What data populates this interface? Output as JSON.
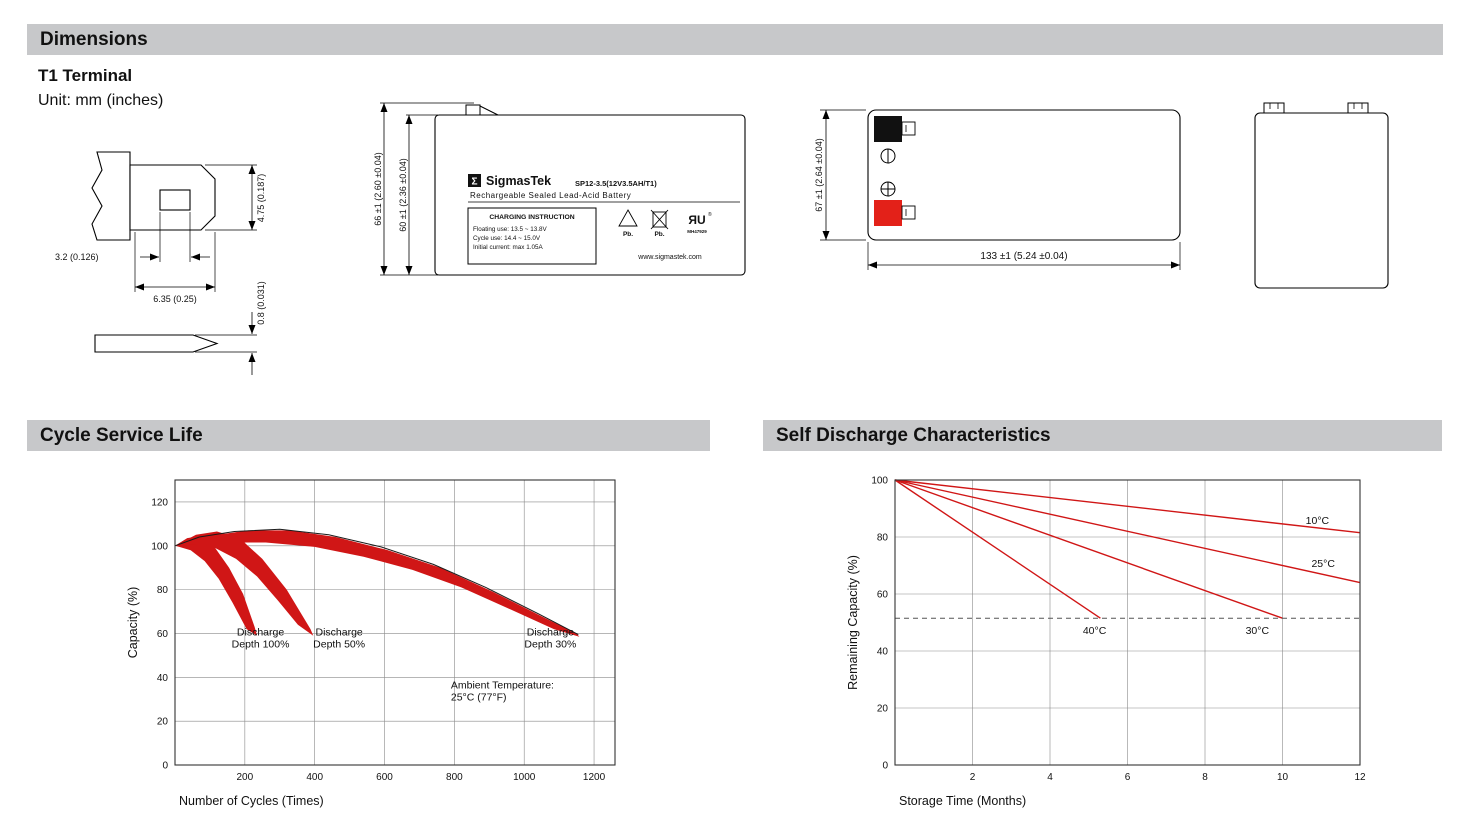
{
  "colors": {
    "section_header_bg": "#c7c8ca",
    "chart_red": "#d01616",
    "terminal_red": "#e32119",
    "terminal_black": "#111111"
  },
  "sections": {
    "dimensions": {
      "title": "Dimensions",
      "subtitle": "T1 Terminal",
      "unit_note": "Unit: mm (inches)"
    },
    "cycle_life": {
      "title": "Cycle Service Life"
    },
    "self_discharge": {
      "title": "Self Discharge Characteristics"
    }
  },
  "terminal_drawing": {
    "dim_tab_width": "4.75 (0.187)",
    "dim_hole_width": "3.2 (0.126)",
    "dim_tab_length": "6.35 (0.25)",
    "dim_tab_thickness": "0.8 (0.031)"
  },
  "front_view": {
    "logo_glyph": "Σ",
    "brand": "SigmasTek",
    "model": "SP12-3.5(12V3.5AH/T1)",
    "battery_type": "Rechargeable Sealed Lead-Acid Battery",
    "charging_title": "CHARGING INSTRUCTION",
    "charging_line1": "Floating use: 13.5 ~ 13.8V",
    "charging_line2": "Cycle use: 14.4 ~ 15.0V",
    "charging_line3": "Initial current: max 1.05A",
    "pb_recycle_label": "Pb.",
    "pb_bin_label": "Pb.",
    "ul_mark": "ЯU",
    "ul_reg": "®",
    "ul_code": "MH47929",
    "website": "www.sigmastek.com",
    "dim_height_overall": "66 ±1 (2.60 ±0.04)",
    "dim_height_body": "60 ±1 (2.36 ±0.04)"
  },
  "top_view": {
    "dim_depth": "67 ±1 (2.64 ±0.04)",
    "dim_width": "133 ±1 (5.24 ±0.04)"
  },
  "chart_data": [
    {
      "id": "cycle-chart",
      "type": "area",
      "title": "Cycle Service Life",
      "xlabel": "Number of Cycles (Times)",
      "ylabel": "Capacity (%)",
      "xlim": [
        0,
        1260
      ],
      "ylim": [
        0,
        130
      ],
      "xticks": [
        200,
        400,
        600,
        800,
        1000,
        1200
      ],
      "yticks": [
        0,
        20,
        40,
        60,
        80,
        100,
        120
      ],
      "grid": true,
      "legend": "none",
      "bands": [
        {
          "name": "discharge-depth-100",
          "color": "#d01616",
          "points": [
            [
              0,
              100
            ],
            [
              35,
              103.5
            ],
            [
              75,
              104.5
            ],
            [
              115,
              99
            ],
            [
              155,
              90
            ],
            [
              195,
              78
            ],
            [
              228,
              63
            ],
            [
              235,
              59
            ],
            [
              205,
              62
            ],
            [
              165,
              74
            ],
            [
              125,
              85
            ],
            [
              85,
              93
            ],
            [
              45,
              98
            ],
            [
              12,
              99.5
            ],
            [
              0,
              100
            ]
          ]
        },
        {
          "name": "discharge-depth-50",
          "color": "#d01616",
          "points": [
            [
              0,
              100
            ],
            [
              60,
              105
            ],
            [
              120,
              106.5
            ],
            [
              185,
              103.5
            ],
            [
              250,
              94
            ],
            [
              320,
              80
            ],
            [
              388,
              62
            ],
            [
              396,
              59
            ],
            [
              352,
              64
            ],
            [
              295,
              75
            ],
            [
              235,
              86
            ],
            [
              175,
              94
            ],
            [
              115,
              99
            ],
            [
              55,
              100.5
            ],
            [
              0,
              100
            ]
          ]
        },
        {
          "name": "discharge-depth-30",
          "color": "#d01616",
          "points": [
            [
              0,
              100
            ],
            [
              100,
              104.5
            ],
            [
              210,
              107
            ],
            [
              330,
              107
            ],
            [
              460,
              104
            ],
            [
              610,
              98
            ],
            [
              760,
              90
            ],
            [
              910,
              79
            ],
            [
              1060,
              67
            ],
            [
              1150,
              60
            ],
            [
              1158,
              58.5
            ],
            [
              1085,
              62
            ],
            [
              960,
              71
            ],
            [
              820,
              81
            ],
            [
              680,
              89
            ],
            [
              540,
              95
            ],
            [
              400,
              99.5
            ],
            [
              260,
              101.5
            ],
            [
              130,
              101.5
            ],
            [
              40,
              100.5
            ],
            [
              0,
              100
            ]
          ]
        }
      ],
      "lines": [
        {
          "name": "envelope-curve",
          "color": "#1a1a1a",
          "width": 1,
          "points": [
            [
              0,
              100
            ],
            [
              70,
              104
            ],
            [
              170,
              106.5
            ],
            [
              300,
              107.5
            ],
            [
              440,
              105
            ],
            [
              590,
              99.5
            ],
            [
              740,
              91.5
            ],
            [
              890,
              81
            ],
            [
              1040,
              69
            ],
            [
              1155,
              59.5
            ]
          ]
        }
      ],
      "labels": [
        {
          "x": 245,
          "y": 59,
          "anchor": "middle",
          "lines": [
            "Discharge",
            "Depth 100%"
          ]
        },
        {
          "x": 470,
          "y": 59,
          "anchor": "middle",
          "lines": [
            "Discharge",
            "Depth 50%"
          ]
        },
        {
          "x": 1075,
          "y": 59,
          "anchor": "middle",
          "lines": [
            "Discharge",
            "Depth 30%"
          ]
        },
        {
          "x": 790,
          "y": 35,
          "anchor": "start",
          "lines": [
            "Ambient Temperature:",
            "25°C (77°F)"
          ]
        }
      ]
    },
    {
      "id": "self-chart",
      "type": "line",
      "title": "Self Discharge Characteristics",
      "xlabel": "Storage Time (Months)",
      "ylabel": "Remaining Capacity (%)",
      "xlim": [
        0,
        12
      ],
      "ylim": [
        0,
        100
      ],
      "xticks": [
        2,
        4,
        6,
        8,
        10,
        12
      ],
      "yticks": [
        0,
        20,
        40,
        60,
        80,
        100
      ],
      "grid": true,
      "legend": "inline",
      "lines": [
        {
          "name": "temp-10c",
          "color": "#d01616",
          "width": 1.4,
          "points": [
            [
              0,
              100
            ],
            [
              12,
              81.5
            ]
          ]
        },
        {
          "name": "temp-25c",
          "color": "#d01616",
          "width": 1.4,
          "points": [
            [
              0,
              100
            ],
            [
              12,
              64
            ]
          ]
        },
        {
          "name": "temp-30c",
          "color": "#d01616",
          "width": 1.4,
          "points": [
            [
              0,
              100
            ],
            [
              10,
              51.5
            ]
          ]
        },
        {
          "name": "temp-40c",
          "color": "#d01616",
          "width": 1.4,
          "points": [
            [
              0,
              100
            ],
            [
              5.3,
              51.5
            ]
          ]
        },
        {
          "name": "capacity-threshold",
          "color": "#555555",
          "width": 1,
          "dash": "5 4",
          "points": [
            [
              0,
              51.5
            ],
            [
              12,
              51.5
            ]
          ]
        }
      ],
      "labels": [
        {
          "x": 10.9,
          "y": 84.5,
          "anchor": "middle",
          "lines": [
            "10°C"
          ]
        },
        {
          "x": 11.05,
          "y": 69.5,
          "anchor": "middle",
          "lines": [
            "25°C"
          ]
        },
        {
          "x": 5.15,
          "y": 46,
          "anchor": "middle",
          "lines": [
            "40°C"
          ]
        },
        {
          "x": 9.35,
          "y": 46,
          "anchor": "middle",
          "lines": [
            "30°C"
          ]
        }
      ]
    }
  ]
}
